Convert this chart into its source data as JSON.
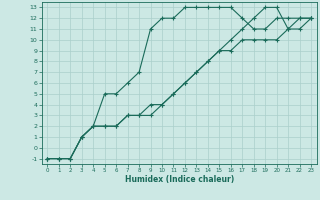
{
  "title": "",
  "xlabel": "Humidex (Indice chaleur)",
  "bg_color": "#cce8e4",
  "grid_color": "#aacfcb",
  "line_color": "#1a6b5a",
  "xlim": [
    -0.5,
    23.5
  ],
  "ylim": [
    -1.5,
    13.5
  ],
  "xticks": [
    0,
    1,
    2,
    3,
    4,
    5,
    6,
    7,
    8,
    9,
    10,
    11,
    12,
    13,
    14,
    15,
    16,
    17,
    18,
    19,
    20,
    21,
    22,
    23
  ],
  "yticks": [
    -1,
    0,
    1,
    2,
    3,
    4,
    5,
    6,
    7,
    8,
    9,
    10,
    11,
    12,
    13
  ],
  "line1_x": [
    0,
    1,
    2,
    3,
    4,
    5,
    6,
    7,
    8,
    9,
    10,
    11,
    12,
    13,
    14,
    15,
    16,
    17,
    18,
    19,
    20,
    21,
    22,
    23
  ],
  "line1_y": [
    -1,
    -1,
    -1,
    1,
    2,
    5,
    5,
    6,
    7,
    11,
    12,
    12,
    13,
    13,
    13,
    13,
    13,
    12,
    11,
    11,
    12,
    12,
    12,
    12
  ],
  "line2_x": [
    0,
    1,
    2,
    3,
    4,
    5,
    6,
    7,
    8,
    9,
    10,
    11,
    12,
    13,
    14,
    15,
    16,
    17,
    18,
    19,
    20,
    21,
    22,
    23
  ],
  "line2_y": [
    -1,
    -1,
    -1,
    1,
    2,
    2,
    2,
    3,
    3,
    3,
    4,
    5,
    6,
    7,
    8,
    9,
    10,
    11,
    12,
    13,
    13,
    11,
    12,
    12
  ],
  "line3_x": [
    0,
    1,
    2,
    3,
    4,
    5,
    6,
    7,
    8,
    9,
    10,
    11,
    12,
    13,
    14,
    15,
    16,
    17,
    18,
    19,
    20,
    21,
    22,
    23
  ],
  "line3_y": [
    -1,
    -1,
    -1,
    1,
    2,
    2,
    2,
    3,
    3,
    4,
    4,
    5,
    6,
    7,
    8,
    9,
    9,
    10,
    10,
    10,
    10,
    11,
    11,
    12
  ]
}
